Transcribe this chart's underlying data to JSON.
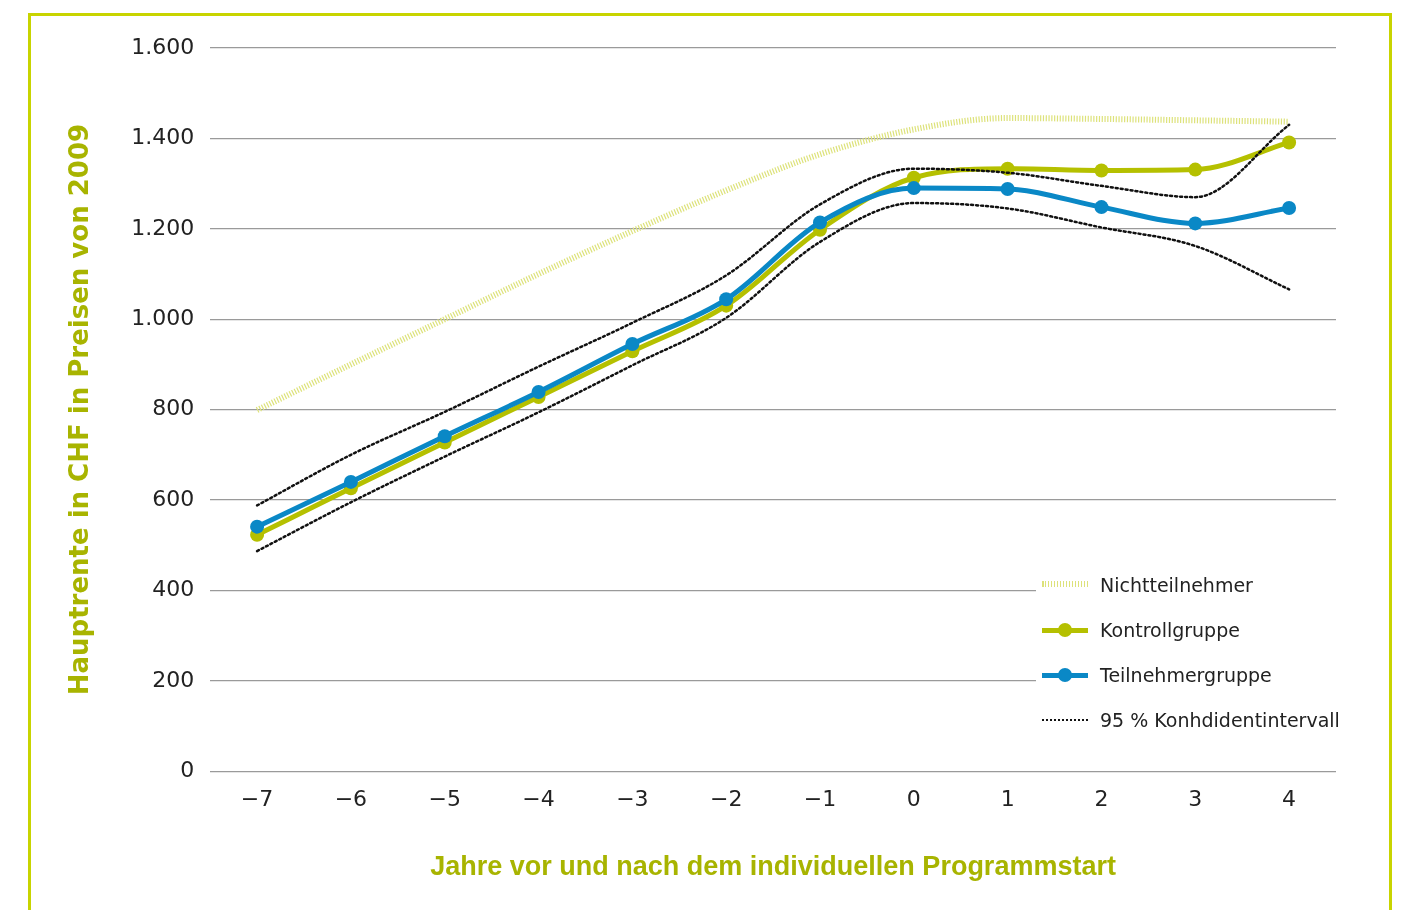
{
  "chart_data": {
    "type": "line",
    "xlabel": "Jahre vor und nach dem individuellen Programmstart",
    "ylabel": "Hauptrente in CHF in Preisen von 2009",
    "categories": [
      "−7",
      "−6",
      "−5",
      "−4",
      "−3",
      "−2",
      "−1",
      "0",
      "1",
      "2",
      "3",
      "4"
    ],
    "series": [
      {
        "name": "Nichtteilnehmer",
        "color": "#dde27a",
        "line_style": "dotted",
        "marker": "none",
        "values": [
          799,
          900,
          1000,
          1100,
          1195,
          1285,
          1365,
          1420,
          1445,
          1443,
          1440,
          1437
        ]
      },
      {
        "name": "Kontrollgruppe",
        "color": "#b5c000",
        "line_style": "solid",
        "marker": "circle",
        "values": [
          523,
          626,
          727,
          828,
          929,
          1030,
          1198,
          1313,
          1333,
          1329,
          1331,
          1391
        ]
      },
      {
        "name": "Teilnehmergruppe",
        "color": "#0a88c6",
        "line_style": "solid",
        "marker": "circle",
        "values": [
          541,
          640,
          741,
          839,
          945,
          1044,
          1214,
          1290,
          1288,
          1248,
          1212,
          1246
        ]
      },
      {
        "name": "95 % Konhdidentintervall",
        "color": "#111111",
        "line_style": "dotted",
        "marker": "none",
        "values": [
          588,
          700,
          795,
          895,
          992,
          1097,
          1254,
          1333,
          1324,
          1295,
          1270,
          1430
        ]
      },
      {
        "color": "#111111",
        "line_style": "dotted",
        "marker": "none",
        "values": [
          487,
          595,
          696,
          794,
          898,
          1003,
          1171,
          1257,
          1245,
          1203,
          1162,
          1066
        ]
      }
    ],
    "ylim": [
      0,
      1600
    ],
    "yticks": [
      0,
      200,
      400,
      600,
      800,
      {
        "value": 1000,
        "label": "1.000"
      },
      {
        "value": 1200,
        "label": "1.200"
      },
      {
        "value": 1400,
        "label": "1.400"
      },
      {
        "value": 1600,
        "label": "1.600"
      }
    ],
    "grid": "y",
    "legend": "bottom right"
  }
}
